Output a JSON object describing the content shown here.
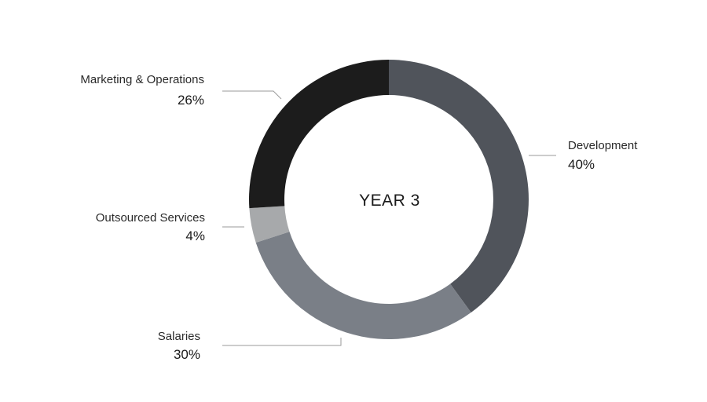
{
  "chart_data": {
    "type": "pie",
    "variant": "donut",
    "title": "YEAR 3",
    "slices": [
      {
        "label": "Development",
        "value": 40,
        "display": "40%",
        "color": "#50545b"
      },
      {
        "label": "Salaries",
        "value": 30,
        "display": "30%",
        "color": "#7a7f87"
      },
      {
        "label": "Outsourced Services",
        "value": 4,
        "display": "4%",
        "color": "#a7a9ab"
      },
      {
        "label": "Marketing & Operations",
        "value": 26,
        "display": "26%",
        "color": "#1c1c1c"
      }
    ],
    "start_angle_deg": 0,
    "direction": "clockwise",
    "legend": "none",
    "labels": "outside-with-leader-lines"
  }
}
